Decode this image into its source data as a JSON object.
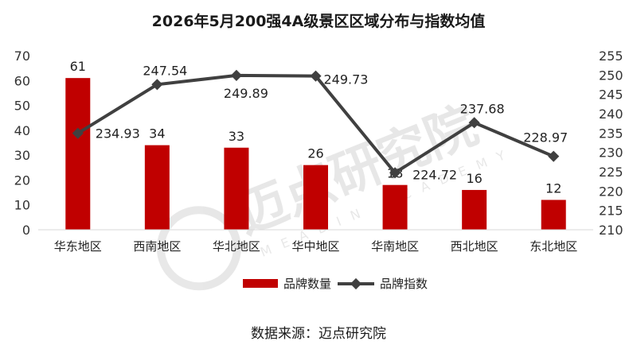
{
  "title": "2026年5月200强4A级景区区域分布与指数均值",
  "source": "数据来源：迈点研究院",
  "watermark": {
    "text_cn": "迈点研究院",
    "text_en": "MEADIN ACADEMY"
  },
  "colors": {
    "bar": "#C00000",
    "line": "#404040",
    "axis_text": "#333333"
  },
  "chart_data": {
    "type": "bar+line",
    "categories": [
      "华东地区",
      "西南地区",
      "华北地区",
      "华中地区",
      "华南地区",
      "西北地区",
      "东北地区"
    ],
    "series": [
      {
        "name": "品牌数量",
        "type": "bar",
        "axis": "left",
        "values": [
          61,
          34,
          33,
          26,
          18,
          16,
          12
        ]
      },
      {
        "name": "品牌指数",
        "type": "line",
        "axis": "right",
        "values": [
          234.93,
          247.54,
          249.89,
          249.73,
          224.72,
          237.68,
          228.97
        ]
      }
    ],
    "left_axis": {
      "ylim": [
        0,
        70
      ],
      "ticks": [
        "0",
        "10",
        "20",
        "30",
        "40",
        "50",
        "60",
        "70"
      ]
    },
    "right_axis": {
      "ylim": [
        210,
        255
      ],
      "ticks": [
        "210",
        "215",
        "220",
        "225",
        "230",
        "235",
        "240",
        "245",
        "250",
        "255"
      ]
    },
    "legend": {
      "position": "bottom",
      "items": [
        "品牌数量",
        "品牌指数"
      ]
    },
    "grid": false
  }
}
